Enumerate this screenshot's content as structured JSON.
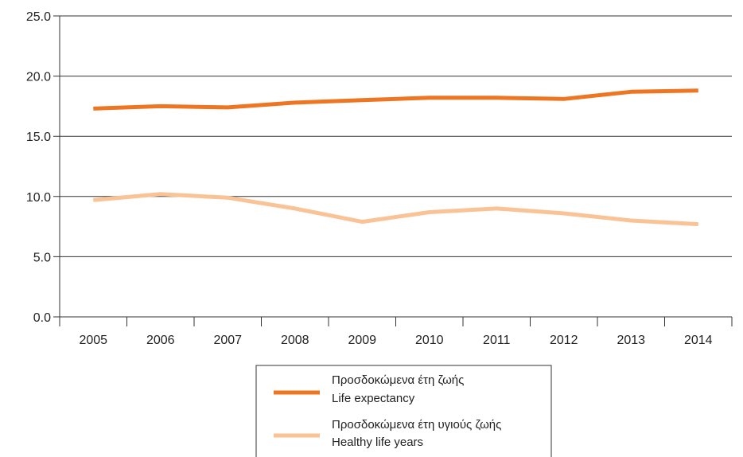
{
  "chart_data": {
    "type": "line",
    "title": "",
    "xlabel": "",
    "ylabel": "",
    "x": [
      "2005",
      "2006",
      "2007",
      "2008",
      "2009",
      "2010",
      "2011",
      "2012",
      "2013",
      "2014"
    ],
    "ylim": [
      0,
      25
    ],
    "yticks": [
      "0.0",
      "5.0",
      "10.0",
      "15.0",
      "20.0",
      "25.0"
    ],
    "grid": "horizontal",
    "legend_position": "bottom",
    "series": [
      {
        "name": "Προσδοκώμενα έτη ζωής",
        "name_en": "Life expectancy",
        "color": "#ee7623",
        "values": [
          17.3,
          17.5,
          17.4,
          17.8,
          18.0,
          18.2,
          18.2,
          18.1,
          18.7,
          18.8
        ]
      },
      {
        "name": "Προσδοκώμενα έτη υγιούς ζωής",
        "name_en": "Healthy life years",
        "color": "#f9c396",
        "values": [
          9.7,
          10.2,
          9.9,
          9.0,
          7.9,
          8.7,
          9.0,
          8.6,
          8.0,
          7.7
        ]
      }
    ]
  }
}
